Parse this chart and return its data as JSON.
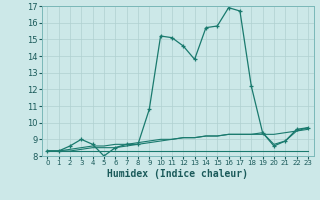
{
  "xlabel": "Humidex (Indice chaleur)",
  "bg_color": "#cce8e8",
  "line_color": "#1a7a6e",
  "grid_color": "#b0d0d0",
  "xlim": [
    -0.5,
    23.5
  ],
  "ylim": [
    8,
    17
  ],
  "xticks": [
    0,
    1,
    2,
    3,
    4,
    5,
    6,
    7,
    8,
    9,
    10,
    11,
    12,
    13,
    14,
    15,
    16,
    17,
    18,
    19,
    20,
    21,
    22,
    23
  ],
  "yticks": [
    8,
    9,
    10,
    11,
    12,
    13,
    14,
    15,
    16,
    17
  ],
  "series": [
    {
      "x": [
        0,
        1,
        2,
        3,
        4,
        5,
        6,
        7,
        8,
        9,
        10,
        11,
        12,
        13,
        14,
        15,
        16,
        17,
        18,
        19,
        20,
        21,
        22,
        23
      ],
      "y": [
        8.3,
        8.3,
        8.6,
        9.0,
        8.7,
        8.0,
        8.5,
        8.7,
        8.7,
        10.8,
        15.2,
        15.1,
        14.6,
        13.8,
        15.7,
        15.8,
        16.9,
        16.7,
        12.2,
        9.4,
        8.6,
        8.9,
        9.6,
        9.7
      ],
      "marker": true
    },
    {
      "x": [
        0,
        1,
        2,
        3,
        4,
        5,
        6,
        7,
        8,
        9,
        10,
        11,
        12,
        13,
        14,
        15,
        16,
        17,
        18,
        19,
        20,
        21,
        22,
        23
      ],
      "y": [
        8.3,
        8.3,
        8.3,
        8.3,
        8.3,
        8.3,
        8.3,
        8.3,
        8.3,
        8.3,
        8.3,
        8.3,
        8.3,
        8.3,
        8.3,
        8.3,
        8.3,
        8.3,
        8.3,
        8.3,
        8.3,
        8.3,
        8.3,
        8.3
      ],
      "marker": false
    },
    {
      "x": [
        0,
        1,
        2,
        3,
        4,
        5,
        6,
        7,
        8,
        9,
        10,
        11,
        12,
        13,
        14,
        15,
        16,
        17,
        18,
        19,
        20,
        21,
        22,
        23
      ],
      "y": [
        8.3,
        8.3,
        8.4,
        8.5,
        8.6,
        8.6,
        8.7,
        8.7,
        8.8,
        8.9,
        9.0,
        9.0,
        9.1,
        9.1,
        9.2,
        9.2,
        9.3,
        9.3,
        9.3,
        9.3,
        9.3,
        9.4,
        9.5,
        9.6
      ],
      "marker": false
    },
    {
      "x": [
        0,
        1,
        2,
        3,
        4,
        5,
        6,
        7,
        8,
        9,
        10,
        11,
        12,
        13,
        14,
        15,
        16,
        17,
        18,
        19,
        20,
        21,
        22,
        23
      ],
      "y": [
        8.3,
        8.3,
        8.3,
        8.4,
        8.5,
        8.5,
        8.5,
        8.6,
        8.7,
        8.8,
        8.9,
        9.0,
        9.1,
        9.1,
        9.2,
        9.2,
        9.3,
        9.3,
        9.3,
        9.4,
        8.7,
        8.9,
        9.5,
        9.7
      ],
      "marker": false
    }
  ]
}
